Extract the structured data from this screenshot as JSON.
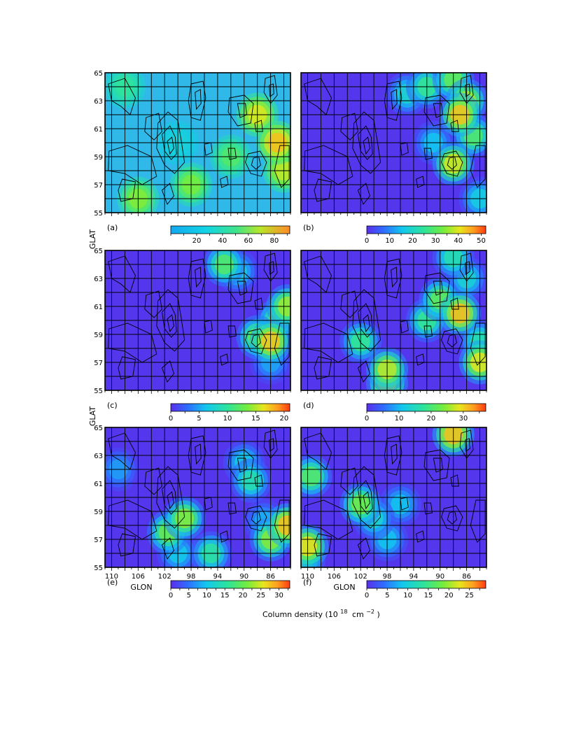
{
  "figure": {
    "xlabel": "GLON",
    "ylabel": "GLAT",
    "colorbar_label_prefix": "Column density (10",
    "colorbar_label_exp1": "18",
    "colorbar_label_mid": "cm",
    "colorbar_label_exp2": "−2",
    "colorbar_label_suffix": ")"
  },
  "colors": {
    "colormap": [
      "#5a2eea",
      "#2f6cff",
      "#12c8ee",
      "#2ee49a",
      "#73ec3e",
      "#e8e61c",
      "#ff9b20",
      "#ff3a10"
    ],
    "contour": "#000000",
    "grid": "#000000"
  },
  "chart_data": [
    {
      "type": "heatmap",
      "panel": "(a)",
      "xlim": [
        111,
        83
      ],
      "ylim": [
        55,
        65
      ],
      "x_ticks": [
        110,
        106,
        102,
        98,
        94,
        90,
        86
      ],
      "y_ticks": [
        55,
        57,
        59,
        61,
        63,
        65
      ],
      "colorbar": {
        "ticks": [
          20,
          40,
          60,
          80
        ],
        "range": [
          0,
          92
        ]
      },
      "grid": true,
      "contours": true,
      "peaks": [
        {
          "x": 100,
          "y": 60,
          "value": 30
        },
        {
          "x": 88,
          "y": 62,
          "value": 72
        },
        {
          "x": 85,
          "y": 60,
          "value": 82
        },
        {
          "x": 84,
          "y": 58,
          "value": 68
        },
        {
          "x": 98,
          "y": 57,
          "value": 58
        },
        {
          "x": 106,
          "y": 56,
          "value": 60
        },
        {
          "x": 108,
          "y": 64,
          "value": 42
        },
        {
          "x": 92,
          "y": 59,
          "value": 50
        }
      ]
    },
    {
      "type": "heatmap",
      "panel": "(b)",
      "xlim": [
        111,
        83
      ],
      "ylim": [
        55,
        65
      ],
      "x_ticks": [
        110,
        106,
        102,
        98,
        94,
        90,
        86
      ],
      "y_ticks": [
        55,
        57,
        59,
        61,
        63,
        65
      ],
      "colorbar": {
        "ticks": [
          0,
          10,
          20,
          30,
          40,
          50
        ],
        "range": [
          0,
          52
        ]
      },
      "grid": true,
      "contours": true,
      "peaks": [
        {
          "x": 87,
          "y": 62,
          "value": 50
        },
        {
          "x": 86,
          "y": 63,
          "value": 40
        },
        {
          "x": 88,
          "y": 58.5,
          "value": 44
        },
        {
          "x": 85,
          "y": 60.5,
          "value": 32
        },
        {
          "x": 92,
          "y": 64,
          "value": 28
        },
        {
          "x": 95,
          "y": 63.5,
          "value": 22
        },
        {
          "x": 88,
          "y": 64.5,
          "value": 34
        },
        {
          "x": 91,
          "y": 60,
          "value": 18
        },
        {
          "x": 84,
          "y": 56,
          "value": 20
        }
      ]
    },
    {
      "type": "heatmap",
      "panel": "(c)",
      "xlim": [
        111,
        83
      ],
      "ylim": [
        55,
        65
      ],
      "x_ticks": [
        110,
        106,
        102,
        98,
        94,
        90,
        86
      ],
      "y_ticks": [
        55,
        57,
        59,
        61,
        63,
        65
      ],
      "colorbar": {
        "ticks": [
          0,
          5,
          10,
          15,
          20
        ],
        "range": [
          0,
          21
        ]
      },
      "grid": true,
      "contours": true,
      "peaks": [
        {
          "x": 93,
          "y": 64,
          "value": 13
        },
        {
          "x": 91,
          "y": 63.5,
          "value": 8
        },
        {
          "x": 83.5,
          "y": 61,
          "value": 16
        },
        {
          "x": 85,
          "y": 60,
          "value": 13
        },
        {
          "x": 86,
          "y": 58.5,
          "value": 20
        },
        {
          "x": 88,
          "y": 58.8,
          "value": 14
        },
        {
          "x": 86,
          "y": 57,
          "value": 6
        }
      ]
    },
    {
      "type": "heatmap",
      "panel": "(d)",
      "xlim": [
        111,
        83
      ],
      "ylim": [
        55,
        65
      ],
      "x_ticks": [
        110,
        106,
        102,
        98,
        94,
        90,
        86
      ],
      "y_ticks": [
        55,
        57,
        59,
        61,
        63,
        65
      ],
      "colorbar": {
        "ticks": [
          0,
          10,
          20,
          30
        ],
        "range": [
          0,
          37
        ]
      },
      "grid": true,
      "contours": true,
      "peaks": [
        {
          "x": 87,
          "y": 60.5,
          "value": 36
        },
        {
          "x": 90,
          "y": 61.5,
          "value": 24
        },
        {
          "x": 92,
          "y": 60,
          "value": 20
        },
        {
          "x": 88,
          "y": 64.5,
          "value": 18
        },
        {
          "x": 98,
          "y": 56.5,
          "value": 30
        },
        {
          "x": 98,
          "y": 55.5,
          "value": 28
        },
        {
          "x": 102,
          "y": 58.5,
          "value": 20
        },
        {
          "x": 84,
          "y": 57,
          "value": 32
        },
        {
          "x": 84,
          "y": 58.5,
          "value": 18
        },
        {
          "x": 86,
          "y": 63,
          "value": 15
        }
      ]
    },
    {
      "type": "heatmap",
      "panel": "(e)",
      "xlim": [
        111,
        83
      ],
      "ylim": [
        55,
        65
      ],
      "x_ticks": [
        110,
        106,
        102,
        98,
        94,
        90,
        86
      ],
      "y_ticks": [
        55,
        57,
        59,
        61,
        63,
        65
      ],
      "colorbar": {
        "ticks": [
          0,
          5,
          10,
          15,
          20,
          25,
          30
        ],
        "range": [
          0,
          33
        ]
      },
      "grid": true,
      "contours": true,
      "peaks": [
        {
          "x": 101.5,
          "y": 57.5,
          "value": 22
        },
        {
          "x": 99,
          "y": 58.5,
          "value": 24
        },
        {
          "x": 95,
          "y": 56,
          "value": 17
        },
        {
          "x": 89,
          "y": 61.2,
          "value": 16
        },
        {
          "x": 90,
          "y": 62.5,
          "value": 12
        },
        {
          "x": 86,
          "y": 57,
          "value": 24
        },
        {
          "x": 83.5,
          "y": 58,
          "value": 32
        },
        {
          "x": 87,
          "y": 58.3,
          "value": 10
        },
        {
          "x": 109,
          "y": 62,
          "value": 9
        },
        {
          "x": 100,
          "y": 56,
          "value": 12
        }
      ]
    },
    {
      "type": "heatmap",
      "panel": "(f)",
      "xlim": [
        111,
        83
      ],
      "ylim": [
        55,
        65
      ],
      "x_ticks": [
        110,
        106,
        102,
        98,
        94,
        90,
        86
      ],
      "y_ticks": [
        55,
        57,
        59,
        61,
        63,
        65
      ],
      "colorbar": {
        "ticks": [
          0,
          5,
          10,
          15,
          20,
          25
        ],
        "range": [
          0,
          29
        ]
      },
      "grid": true,
      "contours": true,
      "peaks": [
        {
          "x": 88,
          "y": 64.5,
          "value": 28
        },
        {
          "x": 110,
          "y": 56.5,
          "value": 26
        },
        {
          "x": 109.5,
          "y": 61.5,
          "value": 18
        },
        {
          "x": 102,
          "y": 59.5,
          "value": 20
        },
        {
          "x": 100,
          "y": 58.5,
          "value": 12
        },
        {
          "x": 98,
          "y": 57,
          "value": 10
        },
        {
          "x": 96,
          "y": 59.5,
          "value": 10
        },
        {
          "x": 110.5,
          "y": 55.5,
          "value": 14
        }
      ]
    }
  ]
}
